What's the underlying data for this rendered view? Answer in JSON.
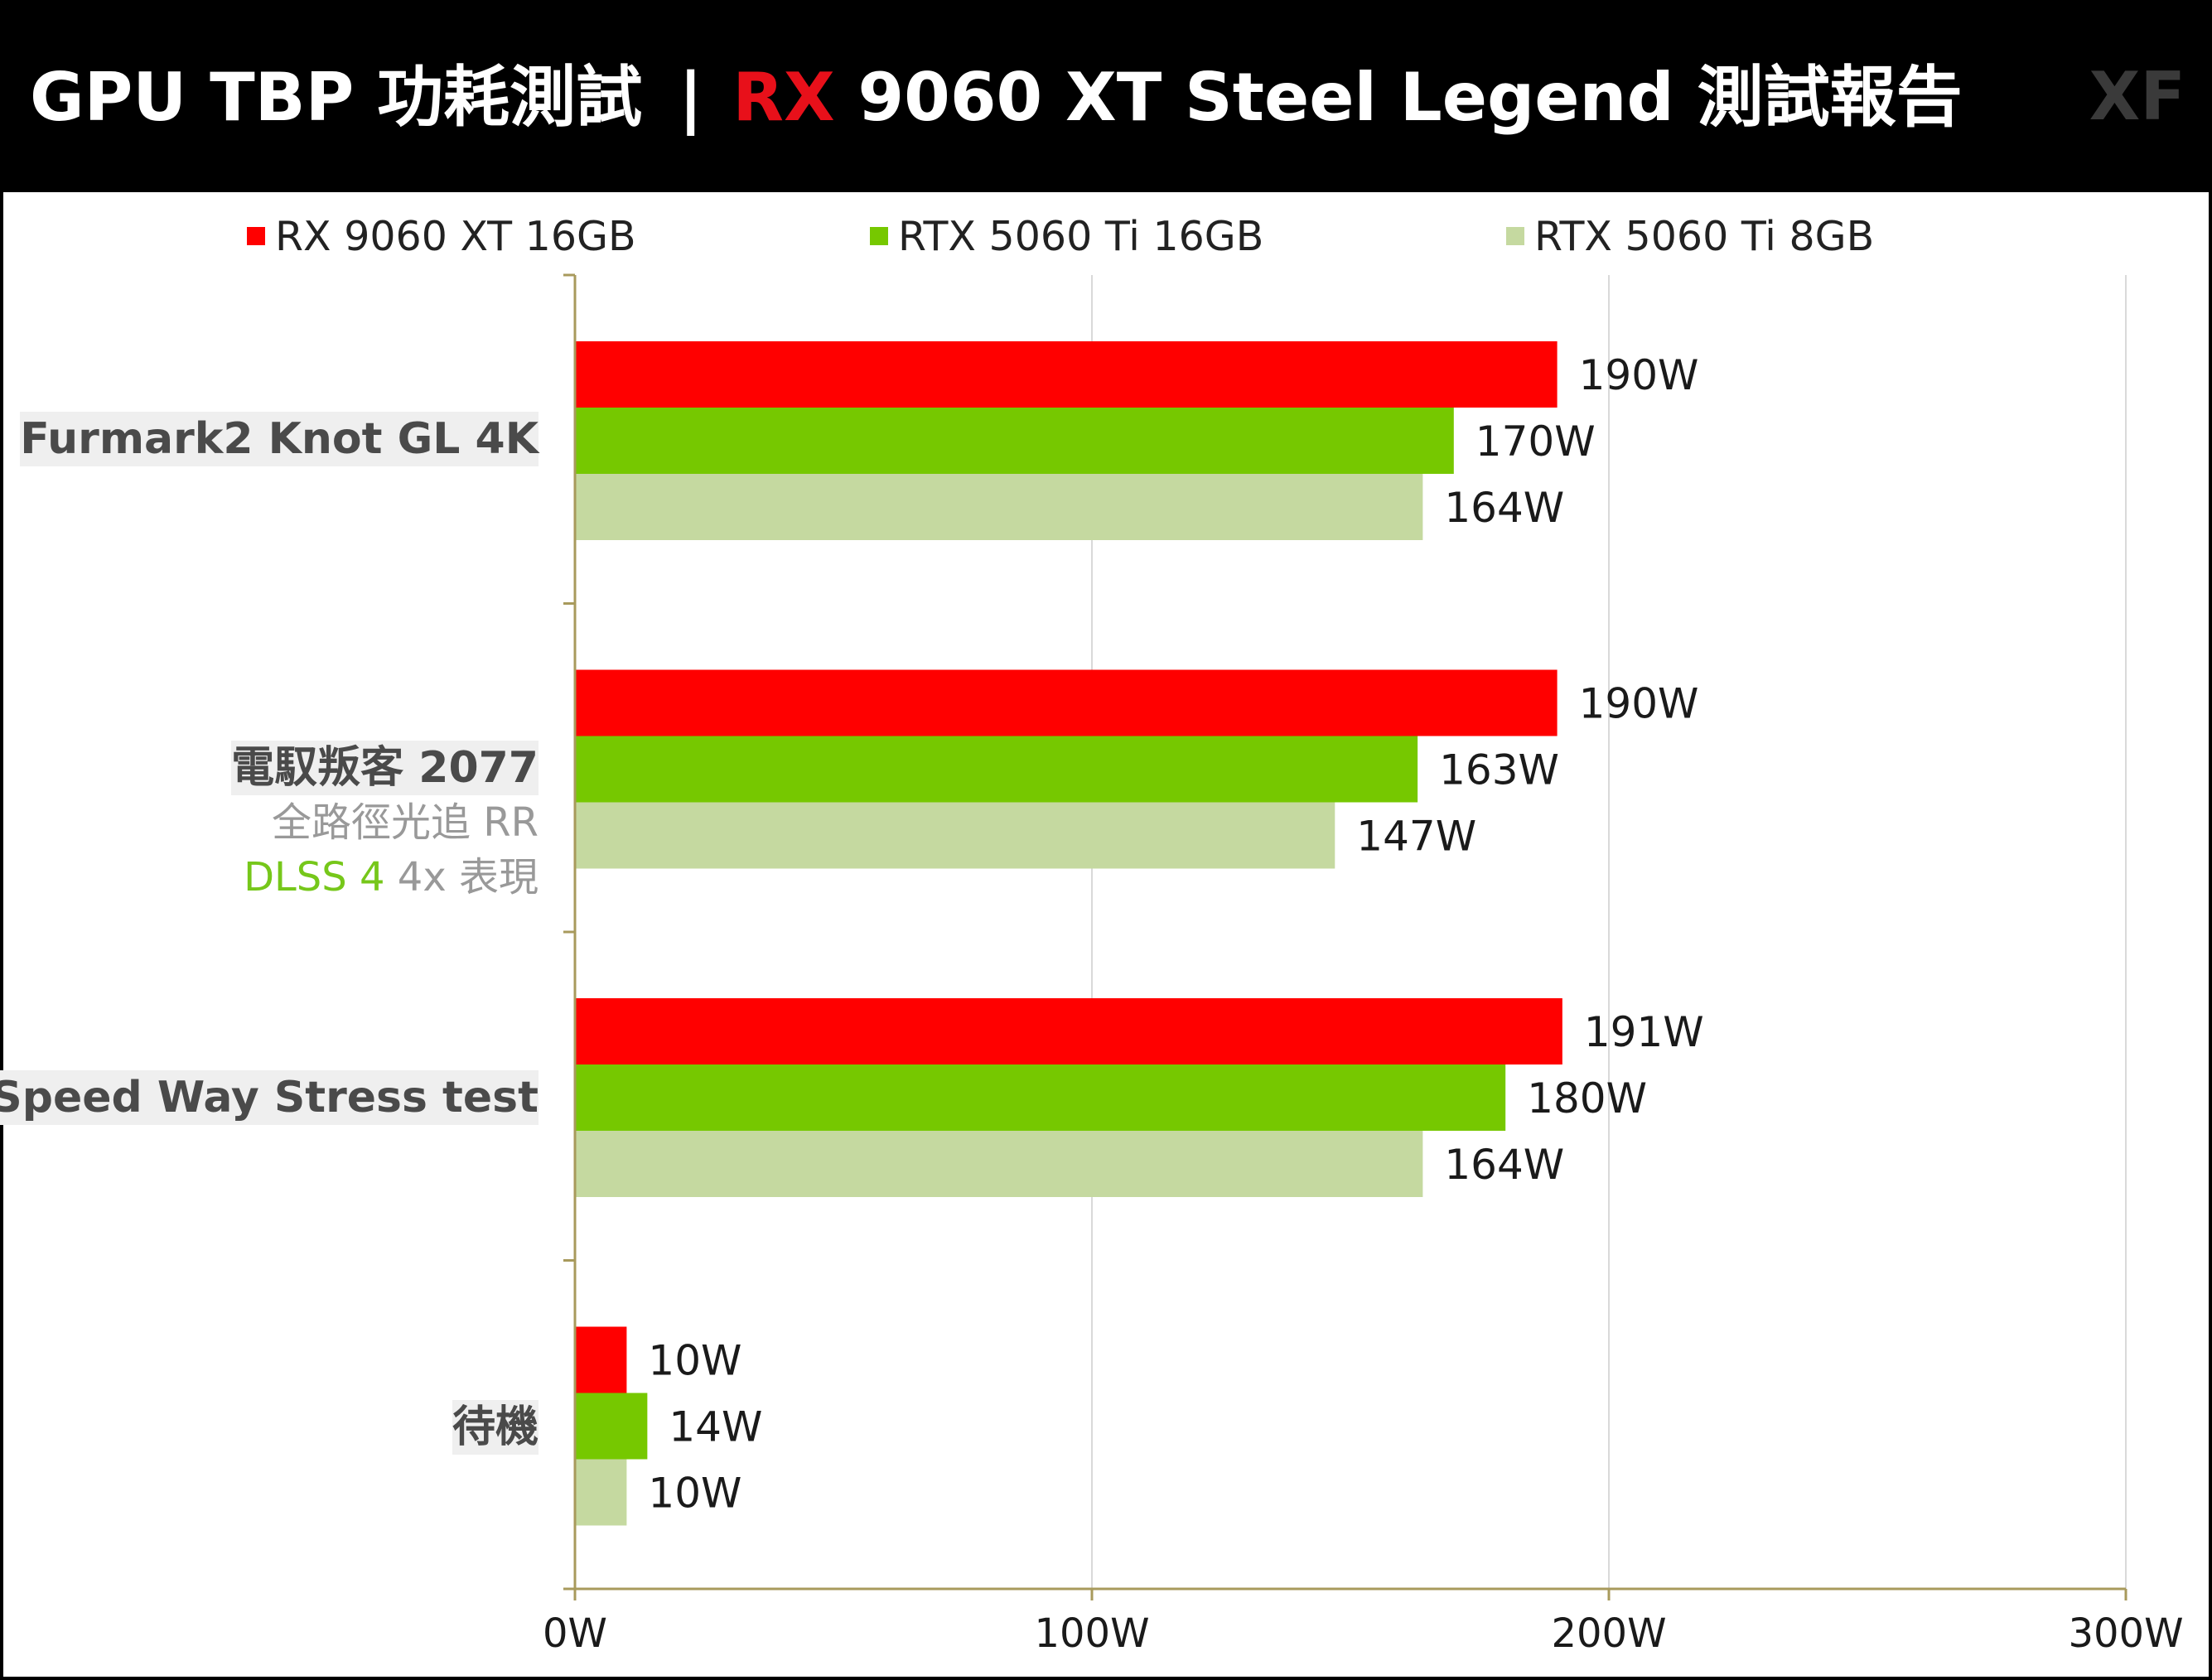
{
  "header": {
    "title_prefix": "GPU TBP 功耗測試",
    "title_separator": "|",
    "title_accent": "RX",
    "title_rest": "9060 XT Steel Legend 測試報告",
    "watermark": "XF"
  },
  "colors": {
    "header_bg": "#000000",
    "accent_red": "#e8101a",
    "series_red": "#ff0000",
    "series_green": "#76c800",
    "series_light_green": "#c5d9a0",
    "axis_line": "#a89a5c",
    "grid_line": "#d9d9d9"
  },
  "legend": [
    {
      "label": "RX 9060 XT 16GB",
      "color": "#ff0000"
    },
    {
      "label": "RTX 5060 Ti 16GB",
      "color": "#76c800"
    },
    {
      "label": "RTX 5060 Ti 8GB",
      "color": "#c5d9a0"
    }
  ],
  "category_labels": [
    {
      "main": "Furmark2 Knot GL 4K",
      "sub1": "",
      "sub2_green": "",
      "sub2_rest": ""
    },
    {
      "main": "電馭叛客 2077",
      "sub1": "全路徑光追 RR",
      "sub2_green": "DLSS 4",
      "sub2_rest": " 4x 表現"
    },
    {
      "main": "Speed Way Stress test",
      "sub1": "",
      "sub2_green": "",
      "sub2_rest": ""
    },
    {
      "main": "待機",
      "sub1": "",
      "sub2_green": "",
      "sub2_rest": ""
    }
  ],
  "chart_data": {
    "type": "bar",
    "orientation": "horizontal",
    "title": "GPU TBP 功耗測試 |RX 9060 XT Steel Legend 測試報告",
    "categories": [
      "Furmark2 Knot GL 4K",
      "電馭叛客 2077 全路徑光追 RR DLSS 4 4x 表現",
      "Speed Way Stress test",
      "待機"
    ],
    "series": [
      {
        "name": "RX 9060 XT 16GB",
        "values": [
          190,
          190,
          191,
          10
        ],
        "labels": [
          "190W",
          "190W",
          "191W",
          "10W"
        ]
      },
      {
        "name": "RTX 5060 Ti 16GB",
        "values": [
          170,
          163,
          180,
          14
        ],
        "labels": [
          "170W",
          "163W",
          "180W",
          "14W"
        ]
      },
      {
        "name": "RTX 5060 Ti 8GB",
        "values": [
          164,
          147,
          164,
          10
        ],
        "labels": [
          "164W",
          "147W",
          "164W",
          "10W"
        ]
      }
    ],
    "xlim": [
      0,
      300
    ],
    "xticks": [
      0,
      100,
      200,
      300
    ],
    "xtick_labels": [
      "0W",
      "100W",
      "200W",
      "300W"
    ],
    "xlabel": "",
    "ylabel": "",
    "grid": "vertical",
    "legend_position": "top"
  }
}
